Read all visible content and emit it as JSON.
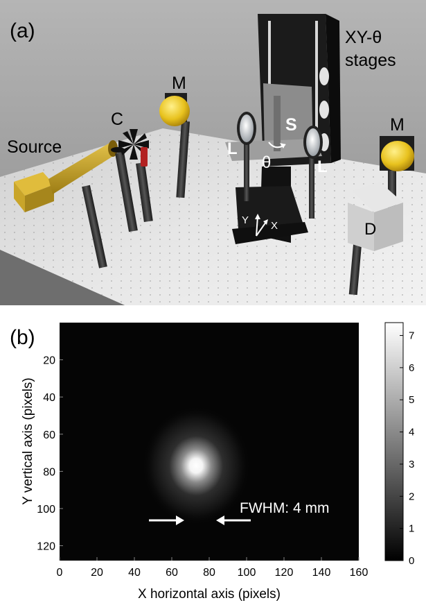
{
  "panel_a": {
    "label": "(a)",
    "labels": {
      "source": "Source",
      "chopper": "C",
      "mirror_left": "M",
      "mirror_right": "M",
      "lens_left": "L",
      "lens_right": "L",
      "sample": "S",
      "theta": "θ",
      "stages_line1": "XY-θ",
      "stages_line2": "stages",
      "detector": "D",
      "axis_y": "Y",
      "axis_x": "X"
    },
    "colors": {
      "background": "#a9a9a9",
      "table": "#dcdcdc",
      "mount": "#3a3a3a",
      "source_body": "#c9a52a",
      "mirror": "#e8c21e",
      "chopper_hub": "#b22222"
    }
  },
  "panel_b": {
    "label": "(b)",
    "annotation": "FWHM: 4 mm",
    "colors": {
      "image_background": "#050505",
      "spot": "#ffffff"
    },
    "chart_data": {
      "type": "heatmap",
      "xlabel": "X horizontal axis (pixels)",
      "ylabel": "Y vertical axis (pixels)",
      "xlim": [
        0,
        160
      ],
      "ylim": [
        128,
        0
      ],
      "x_ticks": [
        "0",
        "20",
        "40",
        "60",
        "80",
        "100",
        "120",
        "140",
        "160"
      ],
      "y_ticks": [
        "20",
        "40",
        "60",
        "80",
        "100",
        "120"
      ],
      "colorbar": {
        "range": [
          0,
          7.4
        ],
        "ticks": [
          "0",
          "1",
          "2",
          "3",
          "4",
          "5",
          "6",
          "7"
        ],
        "colormap": "gray"
      },
      "spot": {
        "x": 73,
        "y": 77,
        "peak": 7.4
      }
    }
  }
}
